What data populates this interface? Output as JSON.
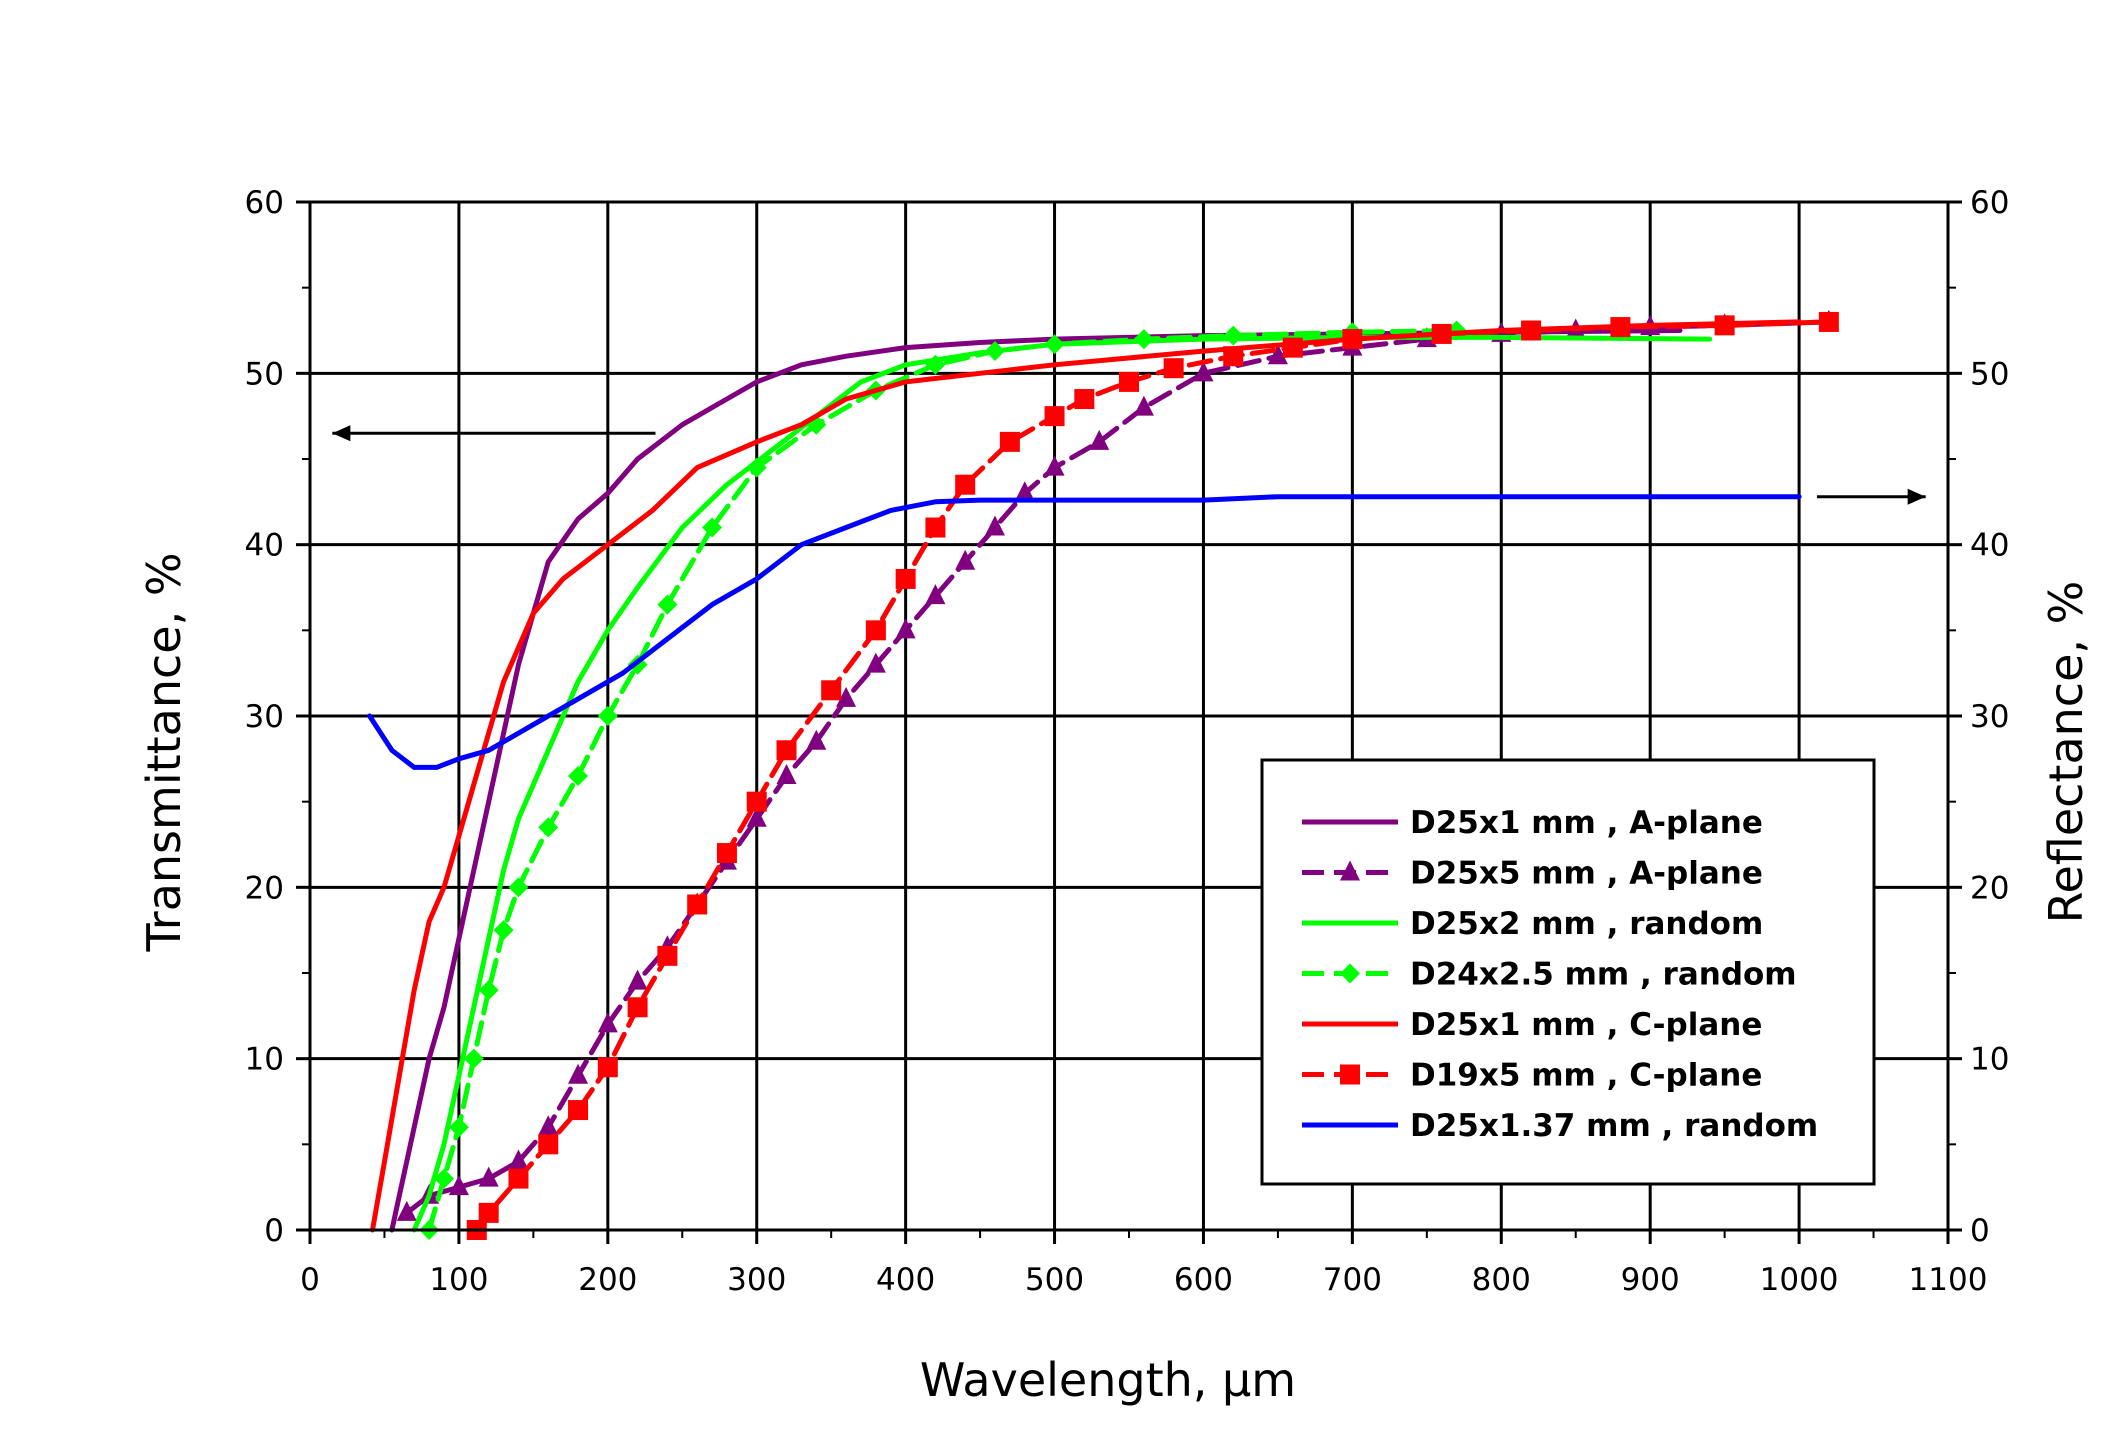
{
  "chart_data": {
    "type": "line",
    "xlabel": "Wavelength, μm",
    "ylabel": "Transmittance, %",
    "ylabel_right": "Reflectance, %",
    "xlim": [
      0,
      1100
    ],
    "ylim": [
      0,
      60
    ],
    "ylim_right": [
      0,
      60
    ],
    "x_ticks": [
      0,
      100,
      200,
      300,
      400,
      500,
      600,
      700,
      800,
      900,
      1000,
      1100
    ],
    "y_ticks": [
      0,
      10,
      20,
      30,
      40,
      50,
      60
    ],
    "x_tick_labels": [
      "0",
      "100",
      "200",
      "300",
      "400",
      "500",
      "600",
      "700",
      "800",
      "900",
      "1000",
      "1100"
    ],
    "y_tick_labels": [
      "0",
      "10",
      "20",
      "30",
      "40",
      "50",
      "60"
    ],
    "grid": true,
    "legend_position": "bottom-right",
    "annotations": [
      {
        "type": "arrow",
        "direction": "left",
        "y": 46.5,
        "x_from": 232,
        "x_to": 15,
        "axis": "left"
      },
      {
        "type": "arrow",
        "direction": "right",
        "y": 42.8,
        "x_from": 1012,
        "x_to": 1085,
        "axis": "right"
      }
    ],
    "series": [
      {
        "name": "D25x1 mm , A-plane",
        "color": "#800080",
        "marker": "none",
        "dash": "solid",
        "x": [
          55,
          60,
          70,
          80,
          90,
          100,
          110,
          120,
          130,
          140,
          150,
          160,
          180,
          200,
          220,
          250,
          280,
          300,
          330,
          360,
          400,
          450,
          500,
          600,
          700,
          800,
          920
        ],
        "y": [
          0,
          2,
          6,
          10,
          13,
          17,
          21,
          25,
          29,
          33,
          36,
          39,
          41.5,
          43,
          45,
          47,
          48.5,
          49.5,
          50.5,
          51,
          51.5,
          51.8,
          52,
          52.2,
          52.3,
          52.4,
          52.5
        ]
      },
      {
        "name": "D25x5 mm , A-plane",
        "color": "#800080",
        "marker": "triangle",
        "dash": "dashed",
        "x": [
          65,
          80,
          100,
          120,
          140,
          160,
          180,
          200,
          220,
          240,
          260,
          280,
          300,
          320,
          340,
          360,
          380,
          400,
          420,
          440,
          460,
          480,
          500,
          530,
          560,
          600,
          650,
          700,
          750,
          800,
          850,
          900,
          950,
          1020
        ],
        "y": [
          1,
          2,
          2.5,
          3,
          4,
          6,
          9,
          12,
          14.5,
          16.5,
          19,
          21.5,
          24,
          26.5,
          28.5,
          31,
          33,
          35,
          37,
          39,
          41,
          43,
          44.5,
          46,
          48,
          50,
          51,
          51.5,
          52,
          52.3,
          52.5,
          52.7,
          52.8,
          53
        ]
      },
      {
        "name": "D25x2 mm , random",
        "color": "#00ff00",
        "marker": "none",
        "dash": "solid",
        "x": [
          70,
          80,
          90,
          100,
          110,
          120,
          130,
          140,
          150,
          160,
          180,
          200,
          220,
          250,
          280,
          310,
          340,
          370,
          400,
          450,
          500,
          600,
          700,
          800,
          940
        ],
        "y": [
          0,
          2,
          5,
          9,
          13,
          17,
          21,
          24,
          26,
          28,
          32,
          35,
          37.5,
          41,
          43.5,
          45.5,
          47.5,
          49.5,
          50.5,
          51.2,
          51.7,
          52,
          52.1,
          52.1,
          52
        ]
      },
      {
        "name": "D24x2.5 mm , random",
        "color": "#00ff00",
        "marker": "diamond",
        "dash": "dashed",
        "x": [
          80,
          90,
          100,
          110,
          120,
          130,
          140,
          160,
          180,
          200,
          220,
          240,
          270,
          300,
          340,
          380,
          420,
          460,
          500,
          560,
          620,
          700,
          770
        ],
        "y": [
          0,
          3,
          6,
          10,
          14,
          17.5,
          20,
          23.5,
          26.5,
          30,
          33,
          36.5,
          41,
          44.5,
          47,
          49,
          50.5,
          51.3,
          51.7,
          52,
          52.2,
          52.4,
          52.5
        ]
      },
      {
        "name": "D25x1 mm , C-plane",
        "color": "#ff0000",
        "marker": "none",
        "dash": "solid",
        "x": [
          42,
          50,
          60,
          70,
          80,
          90,
          100,
          110,
          120,
          130,
          140,
          150,
          170,
          200,
          230,
          260,
          300,
          330,
          360,
          400,
          450,
          500,
          600,
          700,
          800,
          900,
          1000
        ],
        "y": [
          0,
          4,
          9,
          14,
          18,
          20,
          23,
          26,
          29,
          32,
          34,
          36,
          38,
          40,
          42,
          44.5,
          46,
          47,
          48.5,
          49.5,
          50,
          50.5,
          51.3,
          52,
          52.5,
          52.8,
          53
        ]
      },
      {
        "name": "D19x5 mm , C-plane",
        "color": "#ff0000",
        "marker": "square",
        "dash": "dashed",
        "x": [
          112,
          120,
          140,
          160,
          180,
          200,
          220,
          240,
          260,
          280,
          300,
          320,
          350,
          380,
          400,
          420,
          440,
          470,
          500,
          520,
          550,
          580,
          620,
          660,
          700,
          760,
          820,
          880,
          950,
          1020
        ],
        "y": [
          0,
          1,
          3,
          5,
          7,
          9.5,
          13,
          16,
          19,
          22,
          25,
          28,
          31.5,
          35,
          38,
          41,
          43.5,
          46,
          47.5,
          48.5,
          49.5,
          50.3,
          51,
          51.5,
          52,
          52.3,
          52.5,
          52.7,
          52.8,
          53
        ]
      },
      {
        "name": "D25x1.37 mm , random",
        "color": "#0000ff",
        "marker": "none",
        "dash": "solid",
        "x": [
          40,
          55,
          70,
          85,
          100,
          120,
          150,
          180,
          210,
          240,
          270,
          300,
          330,
          360,
          390,
          420,
          450,
          500,
          550,
          600,
          650,
          700,
          800,
          900,
          1000
        ],
        "y": [
          30,
          28,
          27,
          27,
          27.5,
          28,
          29.5,
          31,
          32.5,
          34.5,
          36.5,
          38,
          40,
          41,
          42,
          42.5,
          42.6,
          42.6,
          42.6,
          42.6,
          42.8,
          42.8,
          42.8,
          42.8,
          42.8
        ]
      }
    ]
  }
}
